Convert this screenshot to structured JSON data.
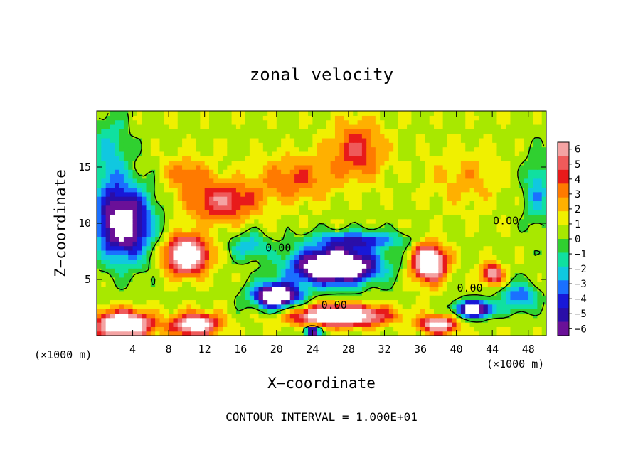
{
  "chart_data": {
    "type": "heatmap",
    "title": "zonal velocity",
    "xlabel": "X−coordinate",
    "ylabel": "Z−coordinate",
    "x_unit_left": "(×1000 m)",
    "x_unit_right": "(×1000 m)",
    "xlim": [
      0,
      50
    ],
    "ylim": [
      0,
      20
    ],
    "xticks": [
      4,
      8,
      12,
      16,
      20,
      24,
      28,
      32,
      36,
      40,
      44,
      48
    ],
    "yticks": [
      5,
      10,
      15
    ],
    "colorbar": {
      "ticks": [
        6,
        5,
        4,
        3,
        2,
        1,
        0,
        -1,
        -2,
        -3,
        -4,
        -5,
        -6
      ],
      "tick_labels": [
        "6",
        "5",
        "4",
        "3",
        "2",
        "1",
        "0",
        "−1",
        "−2",
        "−3",
        "−4",
        "−5",
        "−6"
      ],
      "colors": [
        "#f4a3a3",
        "#ef5a5a",
        "#e81a1a",
        "#ff7a00",
        "#ffb000",
        "#f0f000",
        "#a8e800",
        "#30d030",
        "#10e0a0",
        "#10c8e0",
        "#1a70ff",
        "#1818d8",
        "#2a0ea8",
        "#6a1098"
      ]
    },
    "contour_labels": [
      {
        "text": "0.00",
        "x": 20.2,
        "z": 7.8
      },
      {
        "text": "0.00",
        "x": 26.4,
        "z": 2.7
      },
      {
        "text": "0.00",
        "x": 41.5,
        "z": 4.2
      },
      {
        "text": "0.00",
        "x": 45.5,
        "z": 10.2
      }
    ],
    "field": {
      "background": 0.6,
      "blobs": [
        {
          "x": 29,
          "z": 16.5,
          "sx": 3.0,
          "sz": 2.6,
          "v": 3.6
        },
        {
          "x": 14,
          "z": 12.0,
          "sx": 4.0,
          "sz": 1.8,
          "v": 4.4
        },
        {
          "x": 22,
          "z": 14.0,
          "sx": 4.0,
          "sz": 2.0,
          "v": 2.8
        },
        {
          "x": 10,
          "z": 14.5,
          "sx": 2.5,
          "sz": 1.5,
          "v": 2.4
        },
        {
          "x": 41,
          "z": 14.0,
          "sx": 4.0,
          "sz": 2.5,
          "v": 1.6
        },
        {
          "x": 3,
          "z": 10.0,
          "sx": 3.0,
          "sz": 3.2,
          "v": -8.5
        },
        {
          "x": 1.5,
          "z": 16.0,
          "sx": 2.0,
          "sz": 4.0,
          "v": -2.5
        },
        {
          "x": 49,
          "z": 13.0,
          "sx": 1.5,
          "sz": 3.0,
          "v": -3.0
        },
        {
          "x": 10,
          "z": 7.2,
          "sx": 2.3,
          "sz": 1.6,
          "v": 9.0
        },
        {
          "x": 37,
          "z": 6.5,
          "sx": 1.8,
          "sz": 1.6,
          "v": 9.0
        },
        {
          "x": 44,
          "z": 5.5,
          "sx": 1.2,
          "sz": 0.9,
          "v": 6.0
        },
        {
          "x": 26.5,
          "z": 6.2,
          "sx": 4.5,
          "sz": 1.5,
          "v": -12.0
        },
        {
          "x": 20,
          "z": 3.6,
          "sx": 2.6,
          "sz": 1.1,
          "v": -10.0
        },
        {
          "x": 27,
          "z": 1.8,
          "sx": 5.0,
          "sz": 0.9,
          "v": 9.5
        },
        {
          "x": 3,
          "z": 1.0,
          "sx": 3.0,
          "sz": 1.2,
          "v": 9.5
        },
        {
          "x": 11,
          "z": 1.0,
          "sx": 2.5,
          "sz": 1.0,
          "v": 8.0
        },
        {
          "x": 38,
          "z": 1.0,
          "sx": 2.0,
          "sz": 0.8,
          "v": 7.0
        },
        {
          "x": 42,
          "z": 2.4,
          "sx": 2.0,
          "sz": 0.7,
          "v": -9.0
        },
        {
          "x": 47,
          "z": 3.5,
          "sx": 2.0,
          "sz": 1.2,
          "v": -4.0
        },
        {
          "x": 29,
          "z": 8.5,
          "sx": 5.0,
          "sz": 0.8,
          "v": -4.5
        },
        {
          "x": 17,
          "z": 8.0,
          "sx": 2.0,
          "sz": 1.2,
          "v": -3.0
        },
        {
          "x": 24,
          "z": 0.4,
          "sx": 0.8,
          "sz": 0.5,
          "v": -8.0
        }
      ]
    }
  },
  "footer": {
    "contour_interval": "CONTOUR INTERVAL = 1.000E+01"
  }
}
